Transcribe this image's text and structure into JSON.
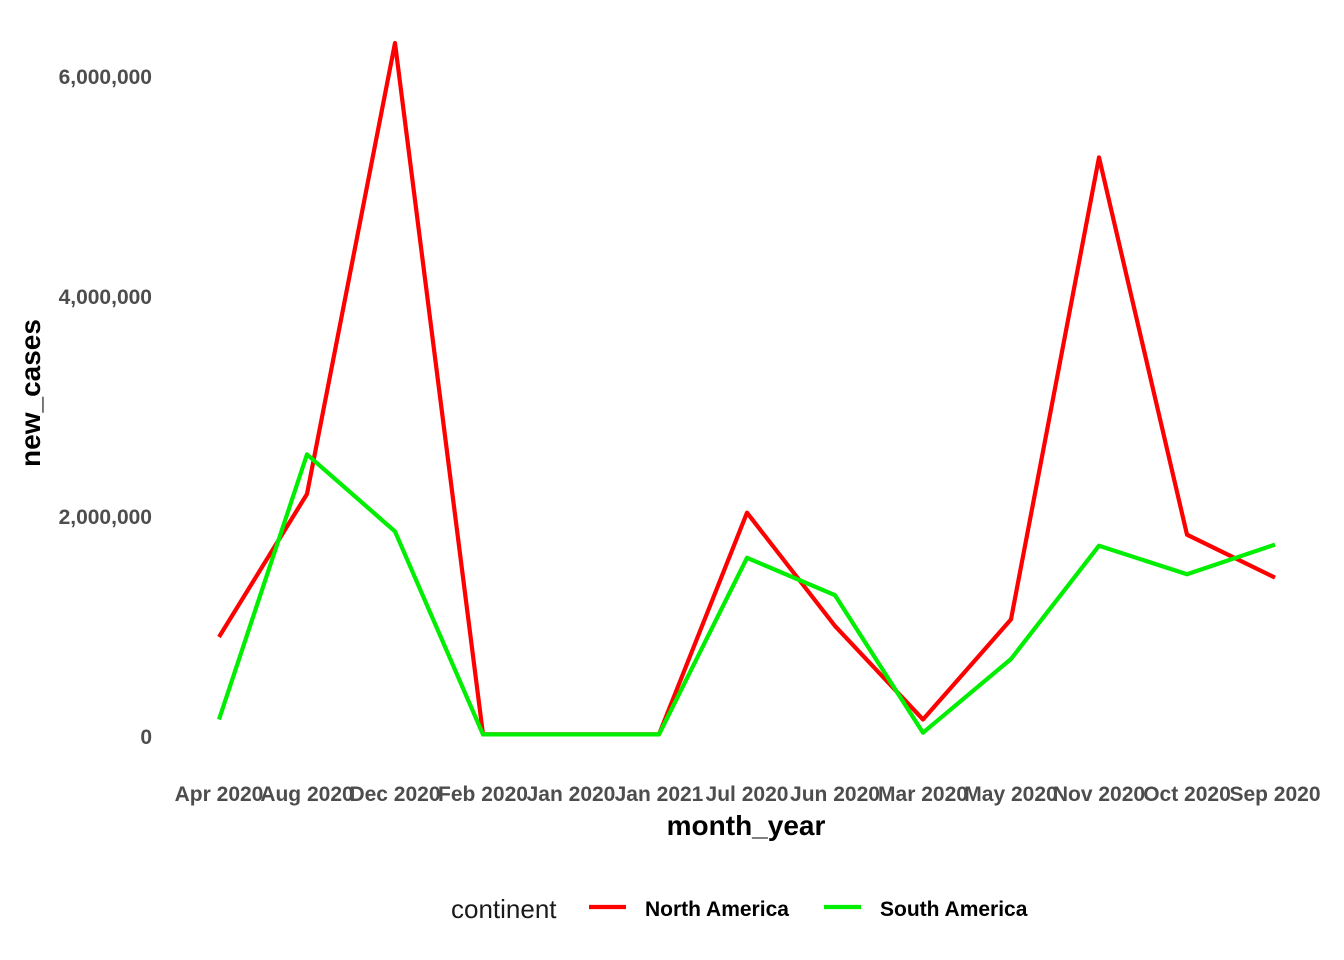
{
  "chart_data": {
    "type": "line",
    "xlabel": "month_year",
    "ylabel": "new_cases",
    "categories": [
      "Apr 2020",
      "Aug 2020",
      "Dec 2020",
      "Feb 2020",
      "Jan 2020",
      "Jan 2021",
      "Jul 2020",
      "Jun 2020",
      "Mar 2020",
      "May 2020",
      "Nov 2020",
      "Oct 2020",
      "Sep 2020"
    ],
    "y_ticks": [
      0,
      2000000,
      4000000,
      6000000
    ],
    "y_tick_labels": [
      "0",
      "2,000,000",
      "4,000,000",
      "6,000,000"
    ],
    "ylim": [
      0,
      6300000
    ],
    "grid": false,
    "legend": {
      "title": "continent",
      "position": "bottom"
    },
    "series": [
      {
        "name": "North America",
        "color": "#ff0000",
        "values": [
          900000,
          2200000,
          6300000,
          15000,
          15000,
          15000,
          2030000,
          1000000,
          150000,
          1060000,
          5260000,
          1830000,
          1440000
        ]
      },
      {
        "name": "South America",
        "color": "#00ee00",
        "values": [
          150000,
          2560000,
          1860000,
          15000,
          15000,
          15000,
          1620000,
          1280000,
          30000,
          700000,
          1730000,
          1470000,
          1740000
        ]
      }
    ]
  }
}
